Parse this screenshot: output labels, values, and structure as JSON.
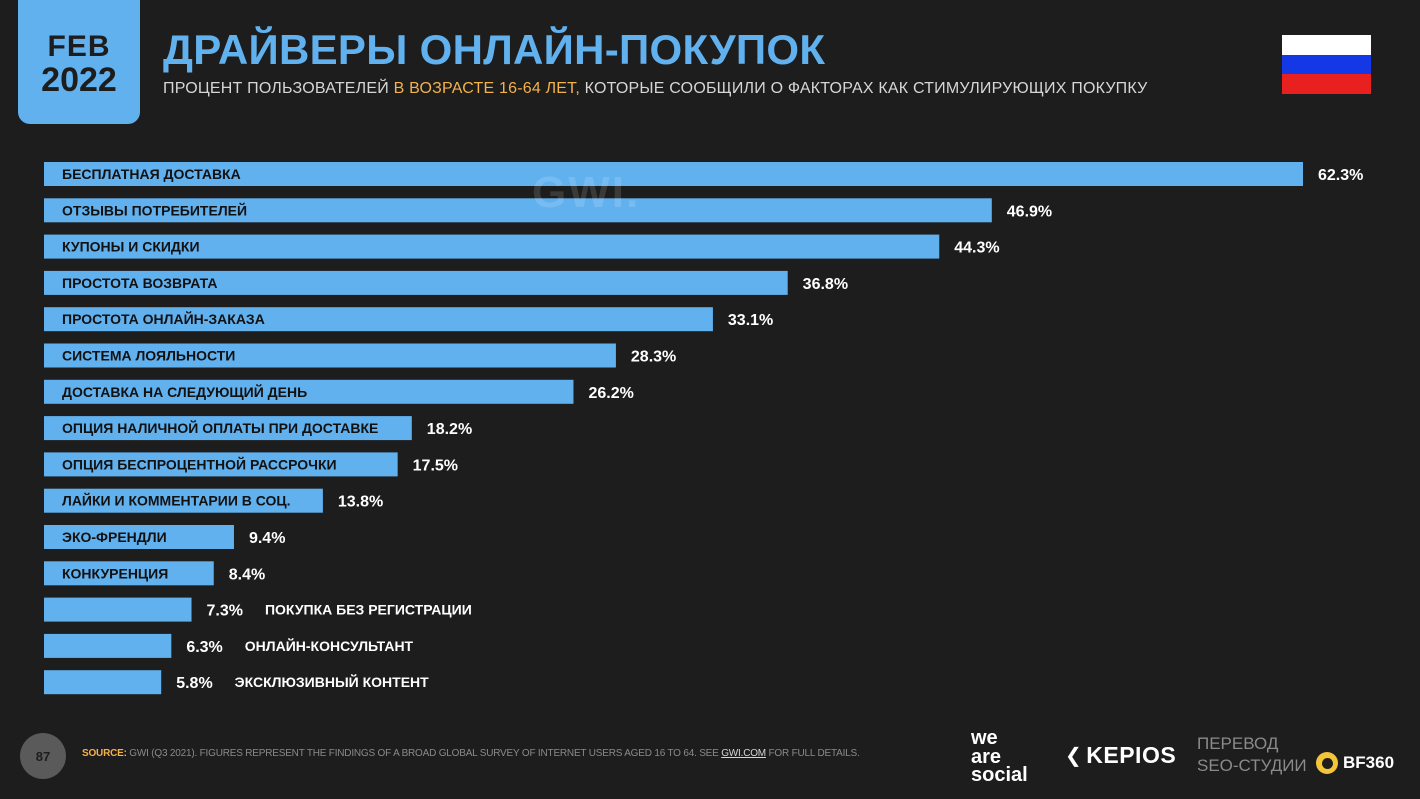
{
  "header": {
    "month": "FEB",
    "year": "2022",
    "title": "ДРАЙВЕРЫ ОНЛАЙН-ПОКУПОК",
    "subtitle_part1": "ПРОЦЕНТ ПОЛЬЗОВАТЕЛЕЙ ",
    "subtitle_highlight": "В ВОЗРАСТЕ 16-64 ЛЕТ,",
    "subtitle_part2": " КОТОРЫЕ СООБЩИЛИ О ФАКТОРАХ КАК СТИМУЛИРУЮЩИХ ПОКУПКУ"
  },
  "watermark": "GWI.",
  "colors": {
    "bar": "#62b1ef",
    "background": "#1d1d1d",
    "highlight": "#f4b24a"
  },
  "chart_data": {
    "type": "bar",
    "orientation": "horizontal",
    "categories": [
      "БЕСПЛАТНАЯ ДОСТАВКА",
      "ОТЗЫВЫ ПОТРЕБИТЕЛЕЙ",
      "КУПОНЫ И СКИДКИ",
      "ПРОСТОТА ВОЗВРАТА",
      "ПРОСТОТА ОНЛАЙН-ЗАКАЗА",
      "СИСТЕМА ЛОЯЛЬНОСТИ",
      "ДОСТАВКА НА СЛЕДУЮЩИЙ ДЕНЬ",
      "ОПЦИЯ НАЛИЧНОЙ ОПЛАТЫ ПРИ ДОСТАВКЕ",
      "ОПЦИЯ БЕСПРОЦЕНТНОЙ РАССРОЧКИ",
      "ЛАЙКИ И КОММЕНТАРИИ В СОЦ.",
      "ЭКО-ФРЕНДЛИ",
      "КОНКУРЕНЦИЯ",
      "ПОКУПКА БЕЗ РЕГИСТРАЦИИ",
      "ОНЛАЙН-КОНСУЛЬТАНТ",
      "ЭКСКЛЮЗИВНЫЙ КОНТЕНТ"
    ],
    "values": [
      62.3,
      46.9,
      44.3,
      36.8,
      33.1,
      28.3,
      26.2,
      18.2,
      17.5,
      13.8,
      9.4,
      8.4,
      7.3,
      6.3,
      5.8
    ],
    "value_labels": [
      "62.3%",
      "46.9%",
      "44.3%",
      "36.8%",
      "33.1%",
      "28.3%",
      "26.2%",
      "18.2%",
      "17.5%",
      "13.8%",
      "9.4%",
      "8.4%",
      "7.3%",
      "6.3%",
      "5.8%"
    ],
    "xlim": [
      0,
      62.3
    ],
    "grid": false,
    "legend": "none"
  },
  "footer": {
    "page_number": "87",
    "source_key": "SOURCE:",
    "source_text": " GWI (Q3 2021). FIGURES REPRESENT THE FINDINGS OF A BROAD GLOBAL SURVEY OF INTERNET USERS AGED 16 TO 64. SEE ",
    "source_link": "GWI.COM",
    "source_tail": " FOR FULL DETAILS.",
    "brand_we": "we",
    "brand_are": "are",
    "brand_social": "social",
    "brand_kepios": "KEPIOS",
    "translation_line1": "ПЕРЕВОД",
    "translation_line2": "SEO-СТУДИИ",
    "brand_bf": "BF360"
  }
}
